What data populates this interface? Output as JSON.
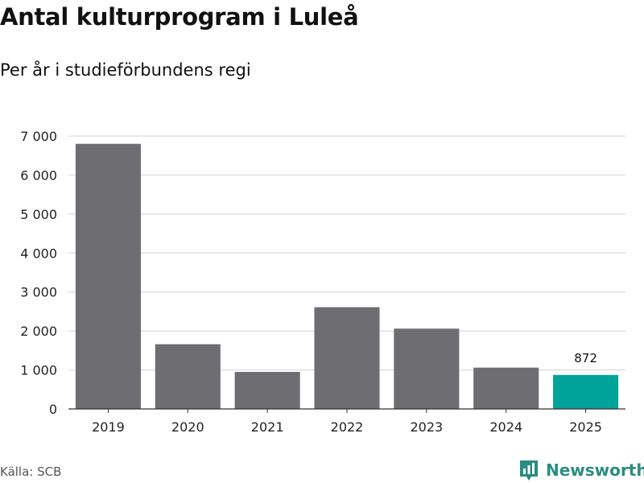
{
  "header": {
    "title": "Antal kulturprogram i Luleå",
    "subtitle": "Per år i studieförbundens regi"
  },
  "footer": {
    "source": "Källa: SCB",
    "brand": "Newsworthy"
  },
  "colors": {
    "bar_default": "#6e6d72",
    "bar_highlight": "#00a399",
    "grid": "#d9d9d9",
    "axis": "#333333",
    "brand": "#2a8c82"
  },
  "chart_data": {
    "type": "bar",
    "categories": [
      "2019",
      "2020",
      "2021",
      "2022",
      "2023",
      "2024",
      "2025"
    ],
    "values": [
      6800,
      1660,
      950,
      2610,
      2060,
      1060,
      872
    ],
    "highlight_index": 6,
    "data_labels": [
      {
        "index": 6,
        "text": "872"
      }
    ],
    "ylim": [
      0,
      7000
    ],
    "yticks": [
      0,
      1000,
      2000,
      3000,
      4000,
      5000,
      6000,
      7000
    ],
    "ytick_labels": [
      "0",
      "1 000",
      "2 000",
      "3 000",
      "4 000",
      "5 000",
      "6 000",
      "7 000"
    ],
    "grid": true,
    "legend": "none"
  }
}
